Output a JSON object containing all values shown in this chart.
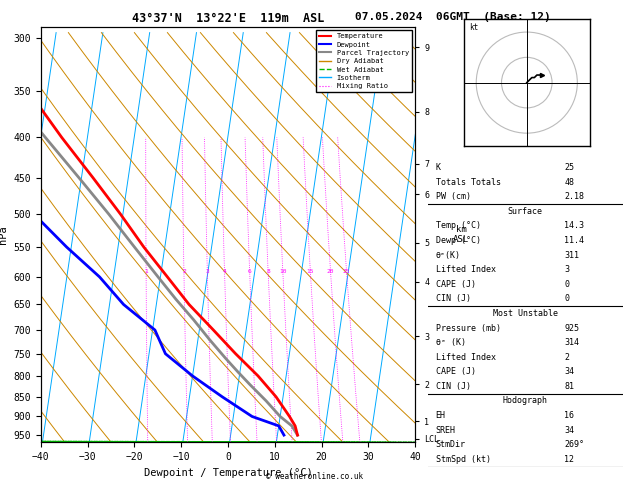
{
  "title_left": "43°37'N  13°22'E  119m  ASL",
  "title_right": "07.05.2024  06GMT  (Base: 12)",
  "xlabel": "Dewpoint / Temperature (°C)",
  "ylabel_left": "hPa",
  "xlim": [
    -40,
    40
  ],
  "temp_color": "#ff0000",
  "dewp_color": "#0000ff",
  "parcel_color": "#888888",
  "dry_adiabat_color": "#cc8800",
  "wet_adiabat_color": "#00bb00",
  "isotherm_color": "#00aaff",
  "mixing_ratio_color": "#ff00ff",
  "background_color": "#ffffff",
  "pressure_ticks": [
    300,
    350,
    400,
    450,
    500,
    550,
    600,
    650,
    700,
    750,
    800,
    850,
    900,
    950
  ],
  "km_tick_pressures": [
    308,
    371,
    432,
    472,
    543,
    608,
    713,
    820,
    912,
    960
  ],
  "km_tick_labels": [
    "9",
    "8",
    "7",
    "6",
    "5",
    "4",
    "3",
    "2",
    "1",
    "LCL"
  ],
  "skew_factor": 25,
  "temp_profile_p": [
    950,
    925,
    900,
    850,
    800,
    750,
    700,
    650,
    600,
    550,
    500,
    450,
    400,
    350,
    300
  ],
  "temp_profile_t": [
    14.3,
    13.5,
    12.0,
    8.5,
    4.0,
    -1.5,
    -7.0,
    -13.0,
    -18.5,
    -24.5,
    -30.5,
    -37.5,
    -45.5,
    -54.0,
    -62.5
  ],
  "dewp_profile_p": [
    950,
    925,
    900,
    850,
    800,
    750,
    700,
    650,
    600,
    550,
    500,
    450,
    400,
    350,
    300
  ],
  "dewp_profile_t": [
    11.4,
    10.0,
    4.0,
    -3.0,
    -10.0,
    -16.5,
    -19.5,
    -27.0,
    -33.0,
    -41.0,
    -49.0,
    -54.0,
    -60.0,
    -68.0,
    -74.0
  ],
  "parcel_profile_p": [
    950,
    925,
    900,
    860,
    820,
    790,
    760,
    720,
    680,
    640,
    600,
    550,
    500,
    450,
    400,
    350,
    300
  ],
  "parcel_profile_t": [
    14.3,
    12.8,
    10.0,
    6.5,
    2.5,
    -0.5,
    -3.5,
    -7.5,
    -11.5,
    -16.0,
    -20.5,
    -26.5,
    -33.0,
    -40.5,
    -49.0,
    -58.5,
    -68.5
  ],
  "mixing_ratio_values": [
    1,
    2,
    3,
    4,
    6,
    8,
    10,
    15,
    20,
    25
  ],
  "mixing_ratio_label_p": 590,
  "stats_K": 25,
  "stats_TT": 48,
  "stats_PW": "2.18",
  "stats_surf_temp": "14.3",
  "stats_surf_dewp": "11.4",
  "stats_surf_theta_e": "311",
  "stats_surf_li": "3",
  "stats_surf_cape": "0",
  "stats_surf_cin": "0",
  "stats_mu_pres": "925",
  "stats_mu_theta_e": "314",
  "stats_mu_li": "2",
  "stats_mu_cape": "34",
  "stats_mu_cin": "81",
  "stats_eh": "16",
  "stats_sreh": "34",
  "stats_stmdir": "269°",
  "stats_stmspd": "12"
}
